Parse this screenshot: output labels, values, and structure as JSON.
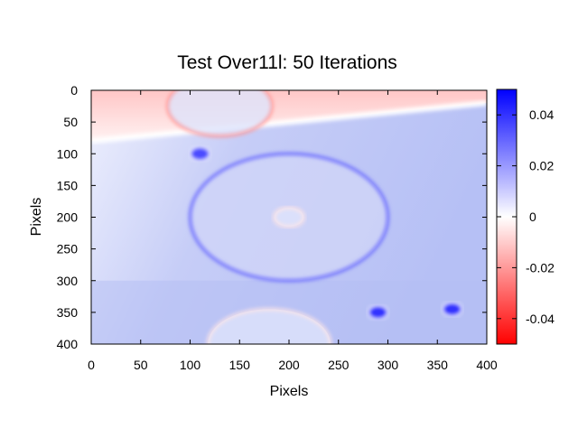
{
  "chart_data": {
    "type": "heatmap",
    "title": "Test Over11l: 50 Iterations",
    "xlabel": "Pixels",
    "ylabel": "Pixels",
    "xlim": [
      0,
      400
    ],
    "ylim": [
      400,
      0
    ],
    "xticks": [
      "0",
      "50",
      "100",
      "150",
      "200",
      "250",
      "300",
      "350",
      "400"
    ],
    "yticks": [
      "0",
      "50",
      "100",
      "150",
      "200",
      "250",
      "300",
      "350",
      "400"
    ],
    "colorbar": {
      "range": [
        -0.05,
        0.05
      ],
      "ticks": [
        "0.04",
        "0.02",
        "0",
        "-0.02",
        "-0.04"
      ],
      "tick_values": [
        0.04,
        0.02,
        0,
        -0.02,
        -0.04
      ],
      "low_color": "#ff0000",
      "mid_color": "#ffffff",
      "high_color": "#0000ff"
    },
    "features": [
      {
        "kind": "negative-band",
        "boundary_left_y": 80,
        "boundary_right_y": 20
      },
      {
        "kind": "ring",
        "cx": 130,
        "cy": 25,
        "rx": 53,
        "ry": 47,
        "value": -0.02
      },
      {
        "kind": "blob",
        "cx": 110,
        "cy": 100,
        "r": 10,
        "value": 0.035
      },
      {
        "kind": "ring",
        "cx": 200,
        "cy": 200,
        "rx": 100,
        "ry": 100,
        "value": 0.03
      },
      {
        "kind": "ring",
        "cx": 200,
        "cy": 200,
        "rx": 15,
        "ry": 15,
        "value": -0.005
      },
      {
        "kind": "blob",
        "cx": 290,
        "cy": 350,
        "r": 10,
        "value": 0.04
      },
      {
        "kind": "blob",
        "cx": 365,
        "cy": 345,
        "r": 10,
        "value": 0.04
      },
      {
        "kind": "ring",
        "cx": 180,
        "cy": 400,
        "rx": 62,
        "ry": 55,
        "value": -0.005
      }
    ]
  }
}
